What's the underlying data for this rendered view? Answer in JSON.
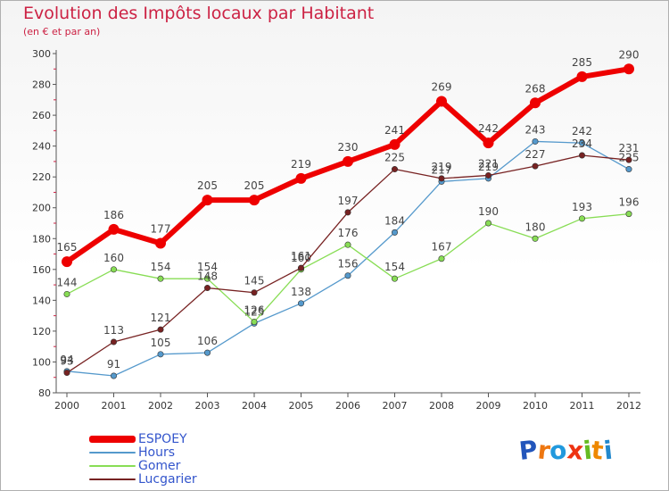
{
  "chart_data": {
    "type": "line",
    "title": "Evolution des Impôts locaux par Habitant",
    "subtitle": "(en € et par an)",
    "xlabel": "",
    "ylabel": "",
    "x": [
      "2000",
      "2001",
      "2002",
      "2003",
      "2004",
      "2005",
      "2006",
      "2007",
      "2008",
      "2009",
      "2010",
      "2011",
      "2012"
    ],
    "ylim": [
      80,
      300
    ],
    "yticks": [
      80,
      100,
      120,
      140,
      160,
      180,
      200,
      220,
      240,
      260,
      280,
      300
    ],
    "grid": false,
    "legend_position": "bottom-left",
    "series": [
      {
        "name": "ESPOEY",
        "color": "#ee0000",
        "values": [
          165,
          186,
          177,
          205,
          205,
          219,
          230,
          241,
          269,
          242,
          268,
          285,
          290
        ]
      },
      {
        "name": "Hours",
        "color": "#5599cc",
        "values": [
          94,
          91,
          105,
          106,
          125,
          138,
          156,
          184,
          217,
          219,
          243,
          242,
          225
        ]
      },
      {
        "name": "Gomer",
        "color": "#88dd55",
        "values": [
          144,
          160,
          154,
          154,
          126,
          160,
          176,
          154,
          167,
          190,
          180,
          193,
          196
        ]
      },
      {
        "name": "Lucgarier",
        "color": "#772222",
        "values": [
          93,
          113,
          121,
          148,
          145,
          161,
          197,
          225,
          219,
          221,
          227,
          234,
          231
        ]
      }
    ]
  },
  "logo": {
    "letters": [
      "P",
      "r",
      "o",
      "x",
      "i",
      "t",
      "i"
    ],
    "colors": [
      "#2255bb",
      "#ee7711",
      "#2299dd",
      "#ee3311",
      "#66bb22",
      "#ee8800",
      "#2288cc"
    ]
  }
}
